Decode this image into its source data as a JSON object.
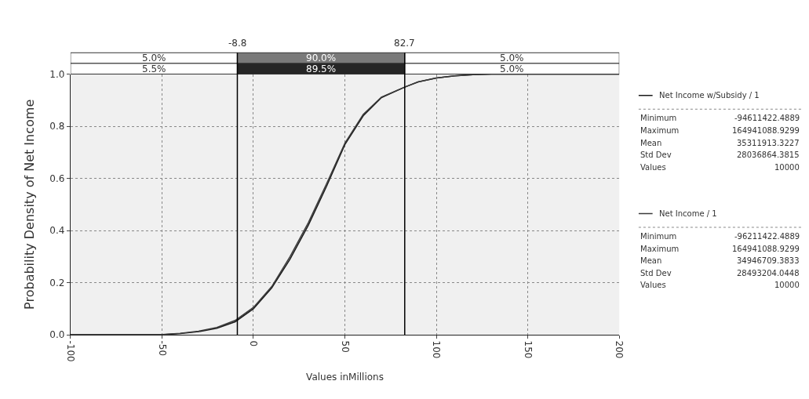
{
  "chart_data": {
    "type": "line",
    "xlabel": "Values inMillions",
    "ylabel": "Probability Density of Net Income",
    "x": [
      -100,
      -50,
      -40,
      -30,
      -20,
      -10,
      0,
      10,
      20,
      30,
      40,
      50,
      60,
      70,
      82.7,
      90,
      100,
      110,
      120,
      130,
      200
    ],
    "series": [
      {
        "name": "Net Income w/Subsidy / 1",
        "color": "#1a1a1a",
        "values": [
          0,
          0,
          0.005,
          0.012,
          0.025,
          0.05,
          0.1,
          0.18,
          0.29,
          0.42,
          0.57,
          0.73,
          0.84,
          0.91,
          0.95,
          0.97,
          0.985,
          0.993,
          0.998,
          1,
          1
        ]
      },
      {
        "name": "Net Income / 1",
        "color": "#3a3a3a",
        "values": [
          0,
          0.001,
          0.006,
          0.014,
          0.028,
          0.055,
          0.105,
          0.185,
          0.3,
          0.43,
          0.58,
          0.735,
          0.845,
          0.912,
          0.95,
          0.97,
          0.985,
          0.993,
          0.998,
          1,
          1
        ]
      }
    ],
    "xlim": [
      -100,
      200
    ],
    "xticks": [
      -100,
      -50,
      0,
      50,
      100,
      150,
      200
    ],
    "ylim": [
      0,
      1
    ],
    "yticks": [
      {
        "value": 0,
        "label": "0.0"
      },
      0.2,
      0.4,
      0.6,
      0.8,
      {
        "value": 1,
        "label": "1.0"
      }
    ],
    "grid": true,
    "line_style": "solid",
    "marker": "none",
    "legend": "right",
    "ref_lines": [
      {
        "axis": "x",
        "value": -8.8,
        "label": "-8.8",
        "color": "#000000"
      },
      {
        "axis": "x",
        "value": 82.7,
        "label": "82.7",
        "color": "#000000"
      }
    ],
    "annotations": [
      "5.0%",
      "90.0%",
      "5.0%",
      "5.5%",
      "89.5%",
      "5.0%",
      "Minimum",
      "-94611422.4889",
      "Maximum",
      "164941088.9299",
      "Mean",
      "35311913.3227",
      "Std Dev",
      "28036864.3815",
      "Values",
      "10000",
      "Minimum",
      "-96211422.4889",
      "Maximum",
      "164941088.9299",
      "Mean",
      "34946709.3833",
      "Std Dev",
      "28493204.0448",
      "Values",
      "10000"
    ]
  }
}
